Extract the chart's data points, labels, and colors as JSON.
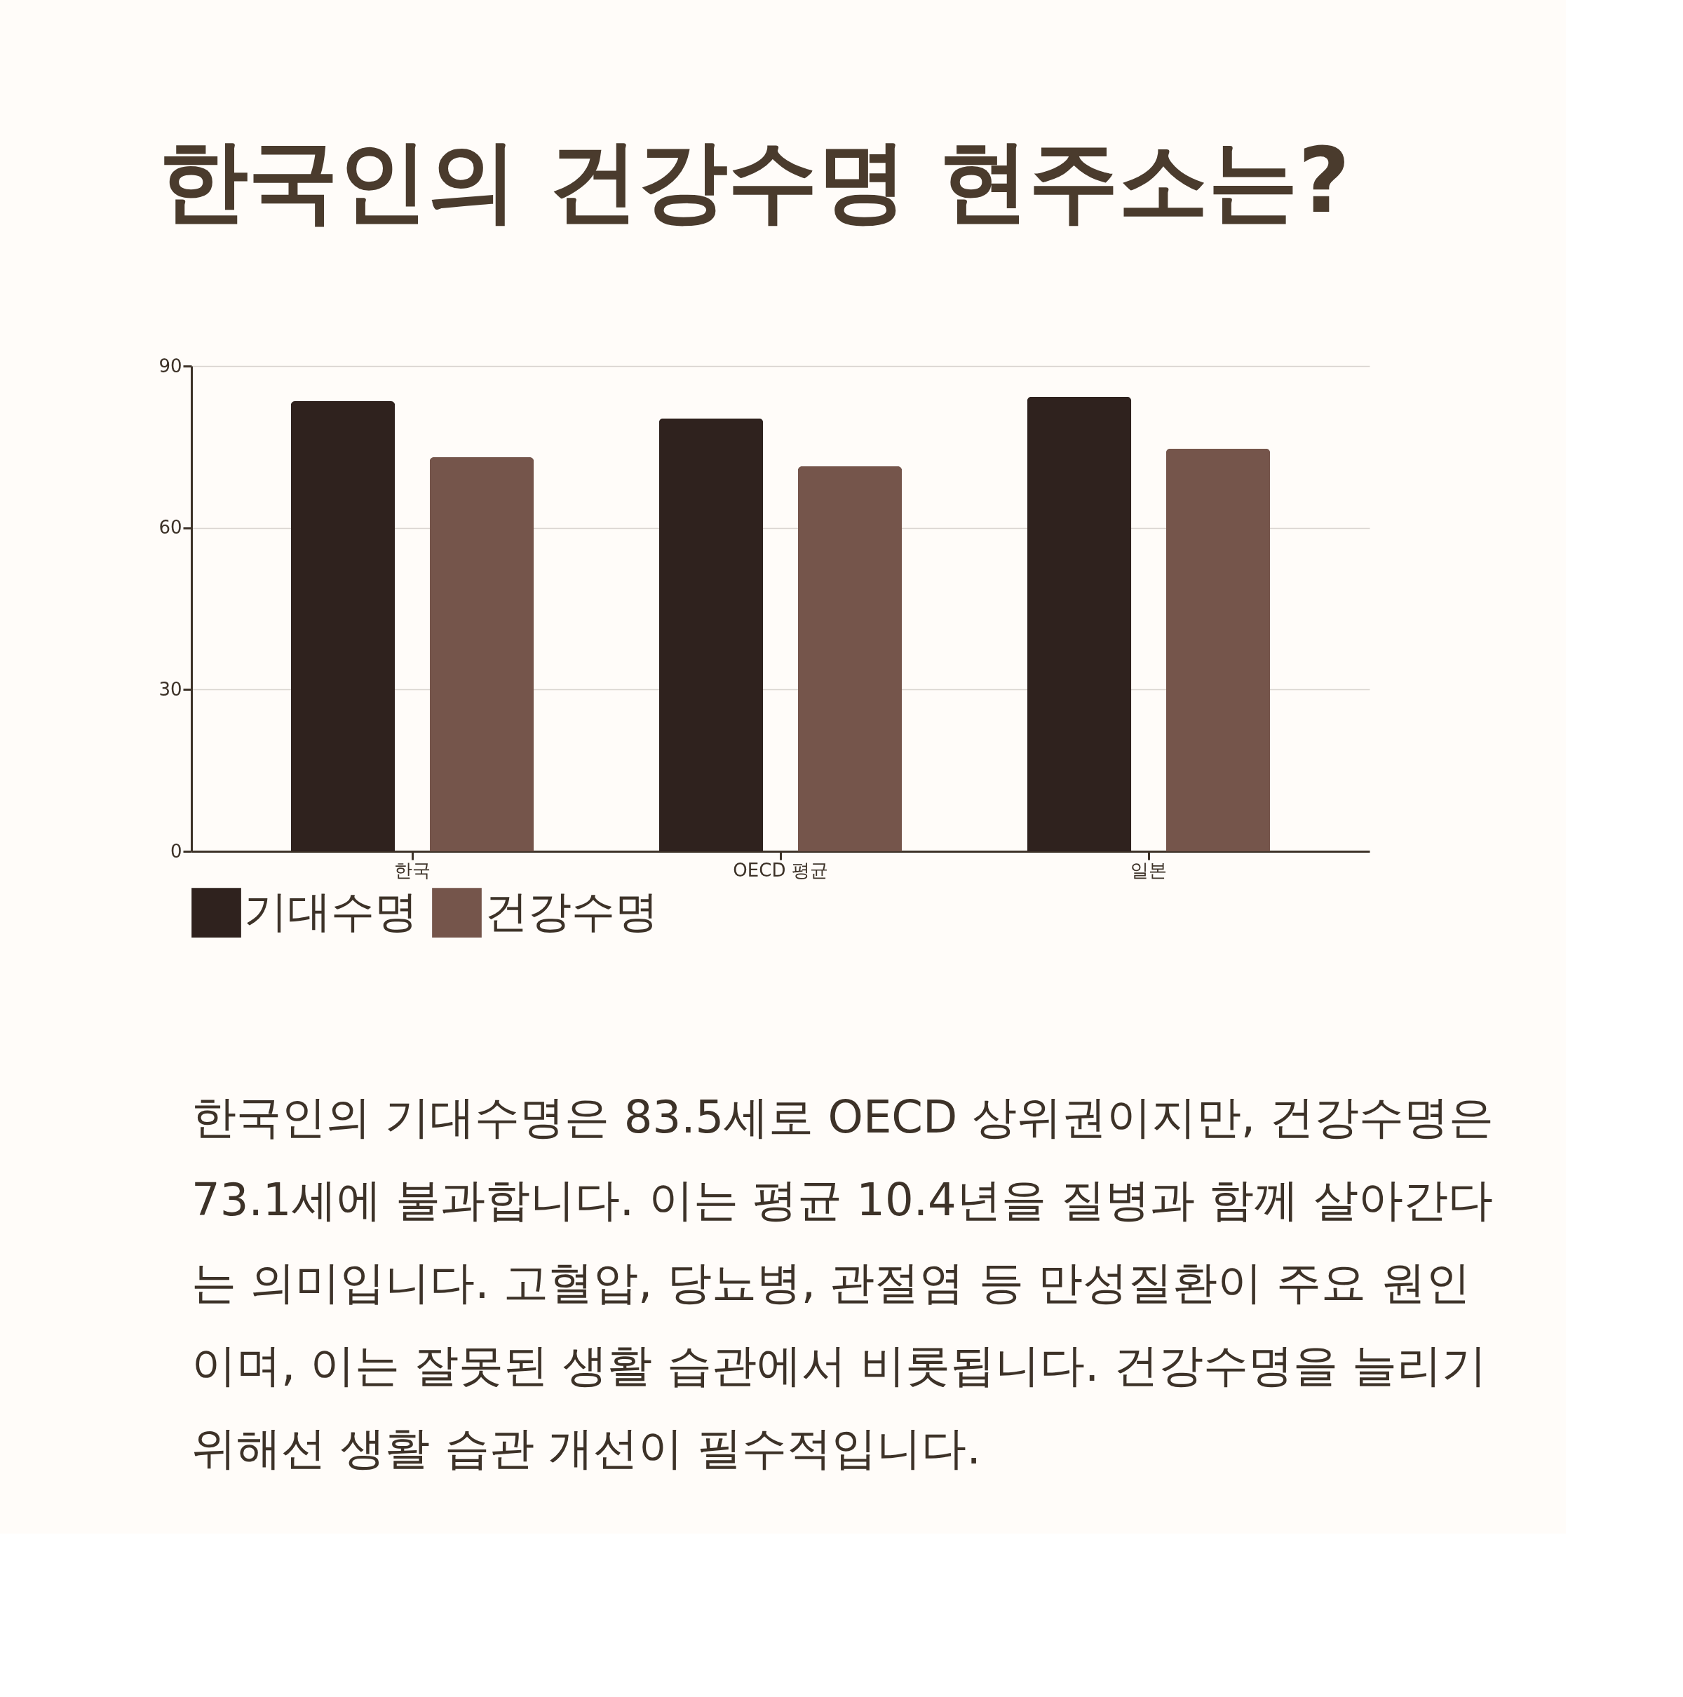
{
  "chart_data": {
    "type": "bar",
    "title": "한국인의 건강수명 현주소는?",
    "categories": [
      "한국",
      "OECD 평균",
      "일본"
    ],
    "series": [
      {
        "name": "기대수명",
        "color": "#2f221e",
        "values": [
          83.5,
          80.3,
          84.3
        ]
      },
      {
        "name": "건강수명",
        "color": "#75554b",
        "values": [
          73.1,
          71.4,
          74.7
        ]
      }
    ],
    "ylim": [
      0,
      90
    ],
    "yticks": [
      0,
      30,
      60,
      90
    ],
    "grid": "y",
    "legend": "bottom",
    "annotations": [
      "한국인의 기대수명은 83.5세로 OECD 상위권이지만, 건강수명은",
      "73.1세에 불과합니다. 이는 평균 10.4년을 질병과 함께 살아간다",
      "는 의미입니다. 고혈압, 당뇨병, 관절염 등 만성질환이 주요 원인",
      "이며, 이는 잘못된 생활 습관에서 비롯됩니다. 건강수명을 늘리기",
      "위해선 생활 습관 개선이 필수적입니다."
    ]
  }
}
